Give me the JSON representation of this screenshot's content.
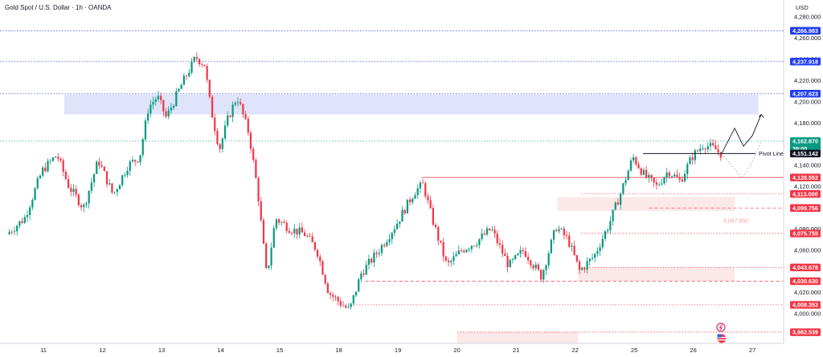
{
  "header": {
    "title": "Gold Spot / U.S. Dollar · 1h · OANDA",
    "currency": "USD"
  },
  "chart_data": {
    "type": "candlestick",
    "title": "Gold Spot / U.S. Dollar · 1h · OANDA",
    "ylim": [
      3972,
      4296
    ],
    "y_ticks": [
      4280,
      4260,
      4240,
      4220,
      4200,
      4180,
      4140,
      4120,
      4080,
      4060,
      4020,
      4000
    ],
    "y_tick_labels": [
      "4,280.000",
      "4,260.000",
      "4,240.000",
      "4,220.000",
      "4,200.000",
      "4,180.000",
      "4,140.000",
      "4,120.000",
      "4,080.000",
      "4,060.000",
      "4,020.000",
      "4,000.000"
    ],
    "x_tick_labels": [
      "11",
      "12",
      "13",
      "14",
      "15",
      "18",
      "19",
      "20",
      "21",
      "22",
      "25",
      "26",
      "27"
    ],
    "x_tick_sessions": [
      0.6,
      1.6,
      2.6,
      3.6,
      4.6,
      5.6,
      6.6,
      7.6,
      8.6,
      9.6,
      10.6,
      11.6,
      12.6
    ],
    "candles_per_session": 23,
    "price_path": [
      [
        0,
        4075
      ],
      [
        0.3,
        4090
      ],
      [
        0.6,
        4135
      ],
      [
        0.85,
        4150
      ],
      [
        1.05,
        4120
      ],
      [
        1.3,
        4100
      ],
      [
        1.55,
        4145
      ],
      [
        1.8,
        4112
      ],
      [
        2.05,
        4140
      ],
      [
        2.25,
        4148
      ],
      [
        2.4,
        4195
      ],
      [
        2.55,
        4205
      ],
      [
        2.7,
        4185
      ],
      [
        2.95,
        4215
      ],
      [
        3.2,
        4242
      ],
      [
        3.35,
        4235
      ],
      [
        3.45,
        4195
      ],
      [
        3.6,
        4155
      ],
      [
        3.75,
        4185
      ],
      [
        3.9,
        4205
      ],
      [
        4.1,
        4170
      ],
      [
        4.25,
        4115
      ],
      [
        4.4,
        4035
      ],
      [
        4.55,
        4090
      ],
      [
        4.8,
        4080
      ],
      [
        5.05,
        4075
      ],
      [
        5.25,
        4060
      ],
      [
        5.45,
        4020
      ],
      [
        5.65,
        4010
      ],
      [
        5.8,
        4003
      ],
      [
        6.0,
        4038
      ],
      [
        6.3,
        4060
      ],
      [
        6.6,
        4085
      ],
      [
        6.9,
        4115
      ],
      [
        7.05,
        4122
      ],
      [
        7.2,
        4090
      ],
      [
        7.45,
        4045
      ],
      [
        7.7,
        4060
      ],
      [
        7.95,
        4068
      ],
      [
        8.2,
        4080
      ],
      [
        8.5,
        4045
      ],
      [
        8.75,
        4060
      ],
      [
        9.05,
        4035
      ],
      [
        9.3,
        4082
      ],
      [
        9.5,
        4070
      ],
      [
        9.7,
        4040
      ],
      [
        9.95,
        4055
      ],
      [
        10.2,
        4085
      ],
      [
        10.4,
        4115
      ],
      [
        10.6,
        4148
      ],
      [
        10.8,
        4130
      ],
      [
        11.0,
        4120
      ],
      [
        11.2,
        4135
      ],
      [
        11.4,
        4125
      ],
      [
        11.6,
        4148
      ],
      [
        11.8,
        4160
      ],
      [
        12.0,
        4155
      ],
      [
        12.08,
        4151
      ]
    ],
    "zones": [
      {
        "name": "supply-zone",
        "from": 0.95,
        "to": 12.7,
        "high": 4207,
        "low": 4188,
        "color": "#dfe3fb"
      },
      {
        "name": "demand-zone-upper",
        "from": 9.3,
        "to": 12.3,
        "high": 4110,
        "low": 4097,
        "color": "#fce8e8"
      },
      {
        "name": "demand-zone-lower",
        "from": 9.65,
        "to": 12.3,
        "high": 4043.678,
        "low": 4031,
        "color": "#fce8e8"
      },
      {
        "name": "demand-zone-bottom",
        "from": 7.6,
        "to": 9.65,
        "high": 3983,
        "low": 3972,
        "color": "#fce8e8"
      }
    ],
    "levels": [
      {
        "value": 4266.983,
        "label": "4,266.983",
        "color": "#1e3cf0",
        "line": "dotted-blue"
      },
      {
        "value": 4237.918,
        "label": "4,237.918",
        "color": "#1e3cf0",
        "line": "dotted-blue"
      },
      {
        "value": 4207.623,
        "label": "4,207.623",
        "color": "#1e3cf0",
        "line": "dotted-blue"
      },
      {
        "value": 4162.87,
        "label": "4,162.870",
        "sub": "39:00",
        "color": "#089981",
        "line": "dotted-green"
      },
      {
        "value": 4151.142,
        "label": "4,151.142",
        "color": "#131722",
        "line": "none"
      },
      {
        "value": 4128.552,
        "label": "4,128.552",
        "color": "#f23645",
        "line": "solid-red"
      },
      {
        "value": 4113.0,
        "label": "4,113.000",
        "color": "#f23645",
        "line": "dotted-red"
      },
      {
        "value": 4099.756,
        "label": "4,099.756",
        "color": "#f23645",
        "line": "dashed-red"
      },
      {
        "value": 4075.755,
        "label": "4,075.755",
        "color": "#f23645",
        "line": "dotted-red"
      },
      {
        "value": 4043.678,
        "label": "4,043.678",
        "color": "#f23645",
        "line": "dotted-red"
      },
      {
        "value": 4030.63,
        "label": "4,030.630",
        "color": "#f23645",
        "line": "dashed-red"
      },
      {
        "value": 4008.353,
        "label": "4,008.353",
        "color": "#f23645",
        "line": "dotted-red"
      },
      {
        "value": 3982.539,
        "label": "3,982.539",
        "color": "#f23645",
        "line": "dotted-red"
      }
    ],
    "pivot_line": {
      "value": 4151.142,
      "from": 10.75,
      "label": "Pivot Line"
    },
    "annotation": {
      "value": 4087.95,
      "label": "4,087.950"
    },
    "projection_up": [
      [
        12.08,
        4151
      ],
      [
        12.3,
        4175
      ],
      [
        12.45,
        4158
      ],
      [
        12.6,
        4168
      ],
      [
        12.75,
        4188
      ]
    ],
    "projection_down": [
      [
        12.08,
        4151
      ],
      [
        12.28,
        4138
      ],
      [
        12.42,
        4128
      ],
      [
        12.57,
        4140
      ],
      [
        12.75,
        4162
      ]
    ]
  }
}
